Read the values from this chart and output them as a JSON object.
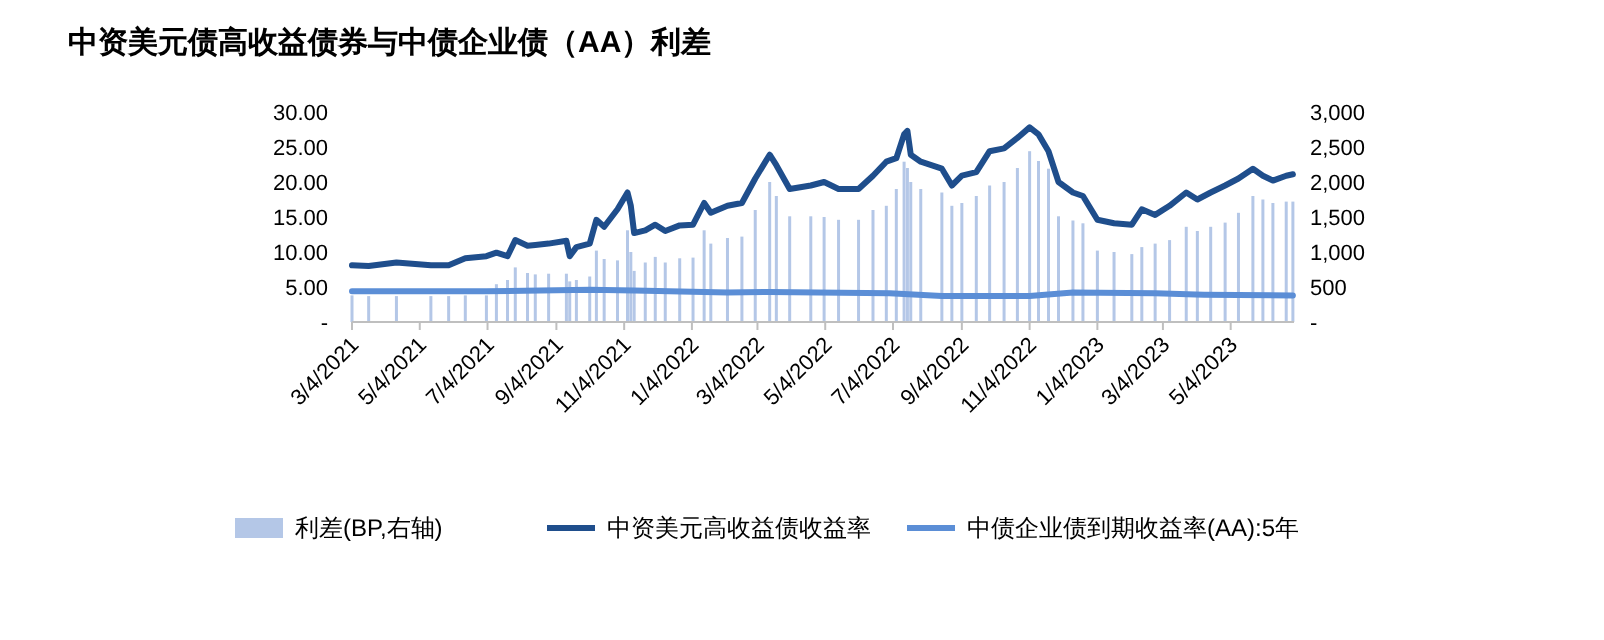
{
  "chart_data": {
    "type": "line",
    "title": "中资美元债高收益债券与中债企业债（AA）利差",
    "xlim": [
      "2021-03-04",
      "2023-06-30"
    ],
    "xticks": [
      {
        "value": "2021-03-04",
        "label": "3/4/2021"
      },
      {
        "value": "2021-05-04",
        "label": "5/4/2021"
      },
      {
        "value": "2021-07-04",
        "label": "7/4/2021"
      },
      {
        "value": "2021-09-04",
        "label": "9/4/2021"
      },
      {
        "value": "2021-11-04",
        "label": "11/4/2021"
      },
      {
        "value": "2022-01-04",
        "label": "1/4/2022"
      },
      {
        "value": "2022-03-04",
        "label": "3/4/2022"
      },
      {
        "value": "2022-05-04",
        "label": "5/4/2022"
      },
      {
        "value": "2022-07-04",
        "label": "7/4/2022"
      },
      {
        "value": "2022-09-04",
        "label": "9/4/2022"
      },
      {
        "value": "2022-11-04",
        "label": "11/4/2022"
      },
      {
        "value": "2023-01-04",
        "label": "1/4/2023"
      },
      {
        "value": "2023-03-04",
        "label": "3/4/2023"
      },
      {
        "value": "2023-05-04",
        "label": "5/4/2023"
      }
    ],
    "ylim": [
      0,
      30
    ],
    "yticks": [
      {
        "value": 0,
        "label": "-"
      },
      {
        "value": 5,
        "label": "5.00"
      },
      {
        "value": 10,
        "label": "10.00"
      },
      {
        "value": 15,
        "label": "15.00"
      },
      {
        "value": 20,
        "label": "20.00"
      },
      {
        "value": 25,
        "label": "25.00"
      },
      {
        "value": 30,
        "label": "30.00"
      }
    ],
    "y2lim": [
      0,
      3000
    ],
    "y2ticks": [
      {
        "value": 0,
        "label": "-"
      },
      {
        "value": 500,
        "label": "500"
      },
      {
        "value": 1000,
        "label": "1,000"
      },
      {
        "value": 1500,
        "label": "1,500"
      },
      {
        "value": 2000,
        "label": "2,000"
      },
      {
        "value": 2500,
        "label": "2,500"
      },
      {
        "value": 3000,
        "label": "3,000"
      }
    ],
    "legend": "bottom",
    "grid": false,
    "series": [
      {
        "name": "利差(BP,右轴)",
        "type": "bar",
        "axis": "y2",
        "color": "#b4c7e7",
        "x": [
          "2021-03-04",
          "2021-03-19",
          "2021-04-13",
          "2021-05-14",
          "2021-05-30",
          "2021-06-14",
          "2021-07-03",
          "2021-07-12",
          "2021-07-22",
          "2021-07-29",
          "2021-08-09",
          "2021-08-16",
          "2021-08-28",
          "2021-09-13",
          "2021-09-16",
          "2021-09-22",
          "2021-10-04",
          "2021-10-10",
          "2021-10-17",
          "2021-10-29",
          "2021-11-07",
          "2021-11-10",
          "2021-11-13",
          "2021-11-23",
          "2021-12-02",
          "2021-12-11",
          "2021-12-24",
          "2022-01-05",
          "2022-01-15",
          "2022-01-21",
          "2022-02-05",
          "2022-02-18",
          "2022-03-02",
          "2022-03-15",
          "2022-03-21",
          "2022-04-02",
          "2022-04-21",
          "2022-05-03",
          "2022-05-16",
          "2022-06-03",
          "2022-06-16",
          "2022-06-28",
          "2022-07-07",
          "2022-07-14",
          "2022-07-17",
          "2022-07-20",
          "2022-07-29",
          "2022-08-17",
          "2022-08-26",
          "2022-09-04",
          "2022-09-17",
          "2022-09-29",
          "2022-10-12",
          "2022-10-24",
          "2022-11-04",
          "2022-11-12",
          "2022-11-21",
          "2022-11-30",
          "2022-12-13",
          "2022-12-22",
          "2023-01-04",
          "2023-01-19",
          "2023-02-04",
          "2023-02-13",
          "2023-02-25",
          "2023-03-10",
          "2023-03-25",
          "2023-04-04",
          "2023-04-16",
          "2023-04-29",
          "2023-05-11",
          "2023-05-24",
          "2023-06-02",
          "2023-06-11",
          "2023-06-23",
          "2023-06-29"
        ],
        "values": [
          380,
          370,
          370,
          370,
          370,
          380,
          380,
          540,
          600,
          780,
          700,
          680,
          690,
          690,
          580,
          600,
          650,
          1020,
          900,
          880,
          1310,
          1000,
          730,
          850,
          930,
          850,
          910,
          920,
          1310,
          1120,
          1200,
          1220,
          1600,
          2000,
          1800,
          1510,
          1510,
          1500,
          1460,
          1460,
          1600,
          1660,
          1900,
          2290,
          2200,
          2000,
          1900,
          1850,
          1660,
          1700,
          1800,
          1950,
          2000,
          2200,
          2440,
          2300,
          2190,
          1510,
          1450,
          1410,
          1020,
          1000,
          970,
          1070,
          1120,
          1170,
          1360,
          1300,
          1360,
          1420,
          1560,
          1800,
          1750,
          1700,
          1720,
          1720
        ]
      },
      {
        "name": "中资美元高收益债收益率",
        "color": "#1f4e8c",
        "x": [
          "2021-03-04",
          "2021-03-19",
          "2021-04-13",
          "2021-05-14",
          "2021-05-30",
          "2021-06-14",
          "2021-07-03",
          "2021-07-12",
          "2021-07-22",
          "2021-07-29",
          "2021-08-09",
          "2021-08-16",
          "2021-08-28",
          "2021-09-13",
          "2021-09-16",
          "2021-09-22",
          "2021-10-04",
          "2021-10-10",
          "2021-10-17",
          "2021-10-29",
          "2021-11-07",
          "2021-11-10",
          "2021-11-13",
          "2021-11-23",
          "2021-12-02",
          "2021-12-11",
          "2021-12-24",
          "2022-01-05",
          "2022-01-15",
          "2022-01-21",
          "2022-02-05",
          "2022-02-18",
          "2022-03-02",
          "2022-03-15",
          "2022-03-21",
          "2022-04-02",
          "2022-04-21",
          "2022-05-03",
          "2022-05-16",
          "2022-06-03",
          "2022-06-16",
          "2022-06-28",
          "2022-07-07",
          "2022-07-14",
          "2022-07-17",
          "2022-07-20",
          "2022-07-29",
          "2022-08-17",
          "2022-08-26",
          "2022-09-04",
          "2022-09-17",
          "2022-09-29",
          "2022-10-12",
          "2022-10-24",
          "2022-11-04",
          "2022-11-12",
          "2022-11-21",
          "2022-11-30",
          "2022-12-13",
          "2022-12-22",
          "2023-01-04",
          "2023-01-19",
          "2023-02-04",
          "2023-02-13",
          "2023-02-25",
          "2023-03-10",
          "2023-03-25",
          "2023-04-04",
          "2023-04-16",
          "2023-04-29",
          "2023-05-11",
          "2023-05-24",
          "2023-06-02",
          "2023-06-11",
          "2023-06-23",
          "2023-06-29"
        ],
        "values": [
          8.1,
          8.0,
          8.5,
          8.1,
          8.1,
          9.1,
          9.4,
          9.9,
          9.4,
          11.7,
          10.9,
          11.0,
          11.2,
          11.6,
          9.4,
          10.7,
          11.2,
          14.6,
          13.6,
          16.1,
          18.5,
          16.6,
          12.7,
          13.1,
          13.9,
          13.0,
          13.8,
          13.9,
          17.0,
          15.6,
          16.6,
          17.0,
          20.5,
          23.9,
          22.4,
          19.0,
          19.5,
          20.0,
          19.0,
          19.0,
          20.9,
          22.9,
          23.4,
          26.8,
          27.3,
          23.9,
          22.9,
          21.9,
          19.5,
          20.9,
          21.4,
          24.4,
          24.8,
          26.3,
          27.8,
          26.8,
          24.4,
          20.0,
          18.5,
          18.0,
          14.6,
          14.1,
          13.9,
          16.1,
          15.3,
          16.6,
          18.5,
          17.5,
          18.5,
          19.5,
          20.5,
          21.9,
          20.9,
          20.2,
          20.9,
          21.1
        ]
      },
      {
        "name": "中债企业债到期收益率(AA):5年",
        "color": "#5b8ed6",
        "x": [
          "2021-03-04",
          "2021-07-03",
          "2021-10-04",
          "2021-11-13",
          "2022-02-05",
          "2022-03-15",
          "2022-07-01",
          "2022-08-17",
          "2022-11-04",
          "2022-12-13",
          "2023-02-25",
          "2023-04-10",
          "2023-06-29"
        ],
        "values": [
          4.4,
          4.4,
          4.6,
          4.5,
          4.2,
          4.3,
          4.1,
          3.7,
          3.7,
          4.2,
          4.1,
          3.9,
          3.8
        ]
      }
    ]
  }
}
